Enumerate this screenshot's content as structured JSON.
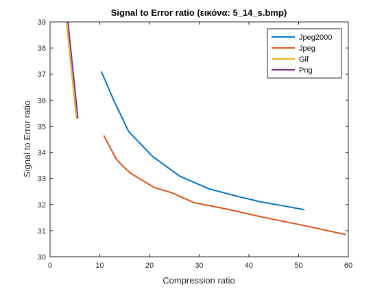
{
  "chart_data": {
    "type": "line",
    "title": "Signal to Error ratio (εικόνα: 5_14_s.bmp)",
    "xlabel": "Compression ratio",
    "ylabel": "Signal to Error ratio",
    "xlim": [
      0,
      60
    ],
    "ylim": [
      30,
      39
    ],
    "xticks": [
      0,
      10,
      20,
      30,
      40,
      50,
      60
    ],
    "yticks": [
      30,
      31,
      32,
      33,
      34,
      35,
      36,
      37,
      38,
      39
    ],
    "grid": false,
    "legend_position": "top-right",
    "series": [
      {
        "name": "Jpeg2000",
        "color": "#0072BD",
        "x": [
          10.3,
          12.8,
          15.8,
          20.6,
          26.0,
          32.0,
          38.0,
          42.5,
          47.0,
          51.2
        ],
        "y": [
          37.1,
          36.0,
          34.8,
          33.85,
          33.1,
          32.6,
          32.3,
          32.1,
          31.95,
          31.8
        ]
      },
      {
        "name": "Jpeg",
        "color": "#D95319",
        "x": [
          10.8,
          13.3,
          14.5,
          16.2,
          21.0,
          24.5,
          29.0,
          35.0,
          42.0,
          51.0,
          59.5
        ],
        "y": [
          34.65,
          33.75,
          33.5,
          33.2,
          32.65,
          32.45,
          32.07,
          31.85,
          31.55,
          31.2,
          30.85
        ]
      },
      {
        "name": "Gif",
        "color": "#EDB120",
        "x": [
          3.3,
          5.3
        ],
        "y": [
          39.0,
          35.3
        ]
      },
      {
        "name": "Png",
        "color": "#7E2F8E",
        "x": [
          3.6,
          5.6
        ],
        "y": [
          39.0,
          35.3
        ]
      }
    ]
  }
}
